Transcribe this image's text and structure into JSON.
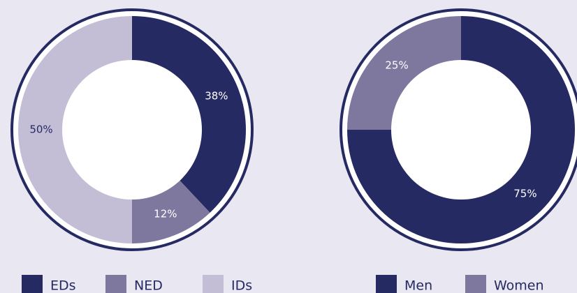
{
  "chart_data": [
    {
      "type": "donut",
      "categories": [
        "EDs",
        "NED",
        "IDs"
      ],
      "values": [
        38,
        12,
        50
      ],
      "value_labels": [
        "38%",
        "12%",
        "50%"
      ],
      "colors": [
        "#252a62",
        "#7e789f",
        "#c3bed6"
      ]
    },
    {
      "type": "donut",
      "categories": [
        "Men",
        "Women"
      ],
      "values": [
        75,
        25
      ],
      "value_labels": [
        "75%",
        "25%"
      ],
      "colors": [
        "#252a62",
        "#7e789f"
      ]
    }
  ]
}
